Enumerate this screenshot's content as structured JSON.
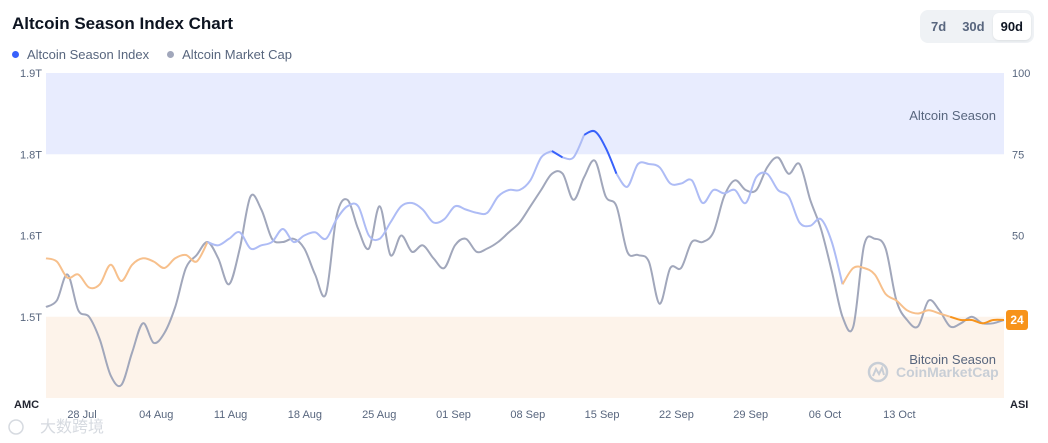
{
  "header": {
    "title": "Altcoin Season Index Chart"
  },
  "legend": {
    "items": [
      {
        "label": "Altcoin Season Index",
        "color": "#3861fb"
      },
      {
        "label": "Altcoin Market Cap",
        "color": "#a1a7bb"
      }
    ]
  },
  "range": {
    "options": [
      "7d",
      "30d",
      "90d"
    ],
    "selected": "90d"
  },
  "zones": {
    "altcoin": "Altcoin Season",
    "bitcoin": "Bitcoin Season"
  },
  "watermark": "CoinMarketCap",
  "corner_watermark": "大数跨境",
  "colors": {
    "altcoin_zone": "#e8ecfe",
    "bitcoin_zone": "#fdf3ea",
    "index_line": "#aebcf5",
    "index_line_high": "#3861fb",
    "index_line_low": "#f7c08c",
    "index_line_low_strong": "#f7931a",
    "market_cap_line": "#a1a7bb",
    "badge": "#f7931a"
  },
  "chart_data": {
    "type": "line",
    "title": "Altcoin Season Index Chart",
    "x_ticks": [
      "28 Jul",
      "04 Aug",
      "11 Aug",
      "18 Aug",
      "25 Aug",
      "01 Sep",
      "08 Sep",
      "15 Sep",
      "22 Sep",
      "29 Sep",
      "06 Oct",
      "13 Oct"
    ],
    "left_axis": {
      "label": "AMC",
      "ticks": [
        "1.9T",
        "1.8T",
        "1.6T",
        "1.5T"
      ]
    },
    "right_axis": {
      "label": "ASI",
      "ticks": [
        "100",
        "75",
        "50"
      ],
      "ylim": [
        0,
        100
      ]
    },
    "thresholds": {
      "altcoin_season": 75,
      "bitcoin_season": 25
    },
    "current_value": "24",
    "series": [
      {
        "name": "Altcoin Season Index",
        "axis": "right",
        "values": [
          43,
          42,
          37,
          38,
          34,
          35,
          41,
          36,
          41,
          43,
          42,
          40,
          43,
          44,
          42,
          48,
          47,
          49,
          51,
          46,
          47,
          48,
          52,
          48,
          50,
          51,
          49,
          55,
          59,
          59,
          50,
          49,
          54,
          59,
          60,
          58,
          54,
          55,
          59,
          58,
          57,
          57,
          62,
          64,
          64,
          67,
          74,
          76,
          74,
          74,
          81,
          82,
          77,
          69,
          65,
          72,
          72,
          71,
          66,
          66,
          67,
          60,
          64,
          63,
          64,
          60,
          68,
          69,
          64,
          62,
          54,
          53,
          55,
          48,
          35,
          40,
          40,
          38,
          32,
          30,
          27,
          26,
          27,
          26,
          25,
          24,
          24,
          23,
          24,
          24
        ]
      },
      {
        "name": "Altcoin Market Cap",
        "axis": "right",
        "values": [
          28,
          30,
          38,
          27,
          25,
          18,
          7,
          4,
          14,
          23,
          17,
          20,
          28,
          40,
          44,
          48,
          43,
          35,
          46,
          62,
          58,
          49,
          48,
          49,
          46,
          38,
          32,
          56,
          61,
          52,
          46,
          59,
          44,
          50,
          45,
          47,
          43,
          40,
          47,
          49,
          45,
          46,
          48,
          51,
          54,
          59,
          64,
          69,
          69,
          61,
          68,
          73,
          62,
          59,
          45,
          44,
          42,
          29,
          40,
          40,
          48,
          48,
          51,
          62,
          67,
          64,
          64,
          71,
          74,
          69,
          72,
          61,
          52,
          39,
          25,
          22,
          47,
          49,
          46,
          30,
          24,
          22,
          30,
          27,
          22,
          23,
          25,
          23,
          23,
          24
        ]
      }
    ]
  }
}
